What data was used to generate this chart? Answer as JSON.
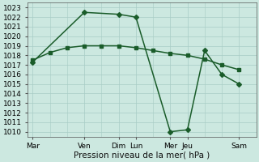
{
  "background_color": "#cce8e0",
  "grid_color": "#a8ccc5",
  "line_color": "#1a5c2a",
  "xlabel": "Pression niveau de la mer( hPa )",
  "ylim": [
    1009.5,
    1023.5
  ],
  "yticks": [
    1010,
    1011,
    1012,
    1013,
    1014,
    1015,
    1016,
    1017,
    1018,
    1019,
    1020,
    1021,
    1022,
    1023
  ],
  "xlabels": [
    "Mar",
    "Ven",
    "Dim",
    "Lun",
    "Mer",
    "Jeu",
    "Sam"
  ],
  "xtick_pos": [
    0,
    3,
    5,
    6,
    8,
    9,
    12
  ],
  "xmax": 13,
  "line1_x": [
    0,
    1,
    2,
    3,
    4,
    5,
    6,
    7,
    8,
    9,
    10,
    11,
    12
  ],
  "line1_y": [
    1017.5,
    1018.3,
    1018.8,
    1019.0,
    1019.0,
    1019.0,
    1018.8,
    1018.5,
    1018.2,
    1018.0,
    1017.6,
    1017.0,
    1016.5
  ],
  "line2_x": [
    0,
    3,
    5,
    6,
    8,
    9,
    10,
    11,
    12
  ],
  "line2_y": [
    1017.3,
    1022.5,
    1022.3,
    1022.0,
    1010.0,
    1010.2,
    1018.5,
    1016.0,
    1015.0
  ],
  "marker_size": 3.0,
  "line_width": 1.1,
  "font_size_ticks": 6.5,
  "font_size_label": 7.5
}
